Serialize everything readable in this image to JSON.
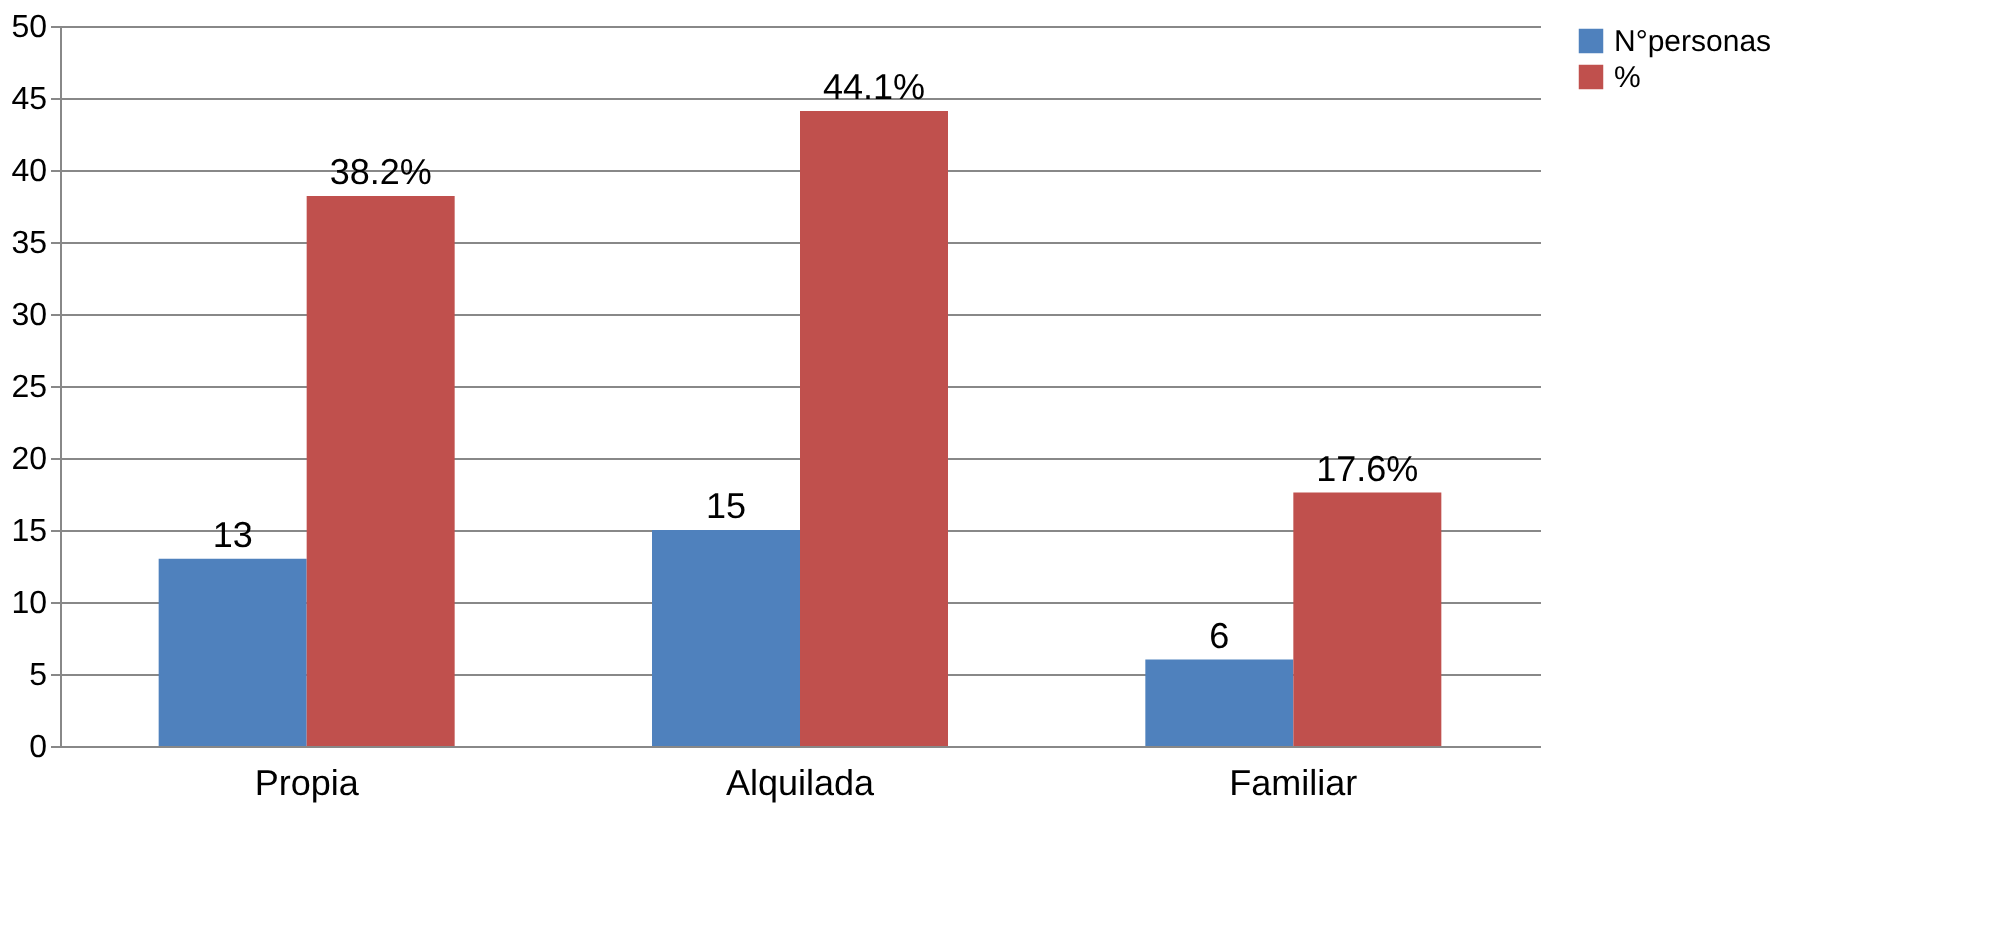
{
  "chart_data": {
    "type": "bar",
    "categories": [
      "Propia",
      "Alquilada",
      "Familiar"
    ],
    "series": [
      {
        "name": "N°personas",
        "color": "#4f81bd",
        "values": [
          13,
          15,
          6
        ],
        "value_labels": [
          "13",
          "15",
          "6"
        ]
      },
      {
        "name": "%",
        "color": "#c0504d",
        "values": [
          38.2,
          44.1,
          17.6
        ],
        "value_labels": [
          "38.2%",
          "44.1%",
          "17.6%"
        ]
      }
    ],
    "ylim": [
      0,
      50
    ],
    "yticks": [
      0,
      5,
      10,
      15,
      20,
      25,
      30,
      35,
      40,
      45,
      50
    ],
    "grid": "y",
    "legend": "right"
  }
}
